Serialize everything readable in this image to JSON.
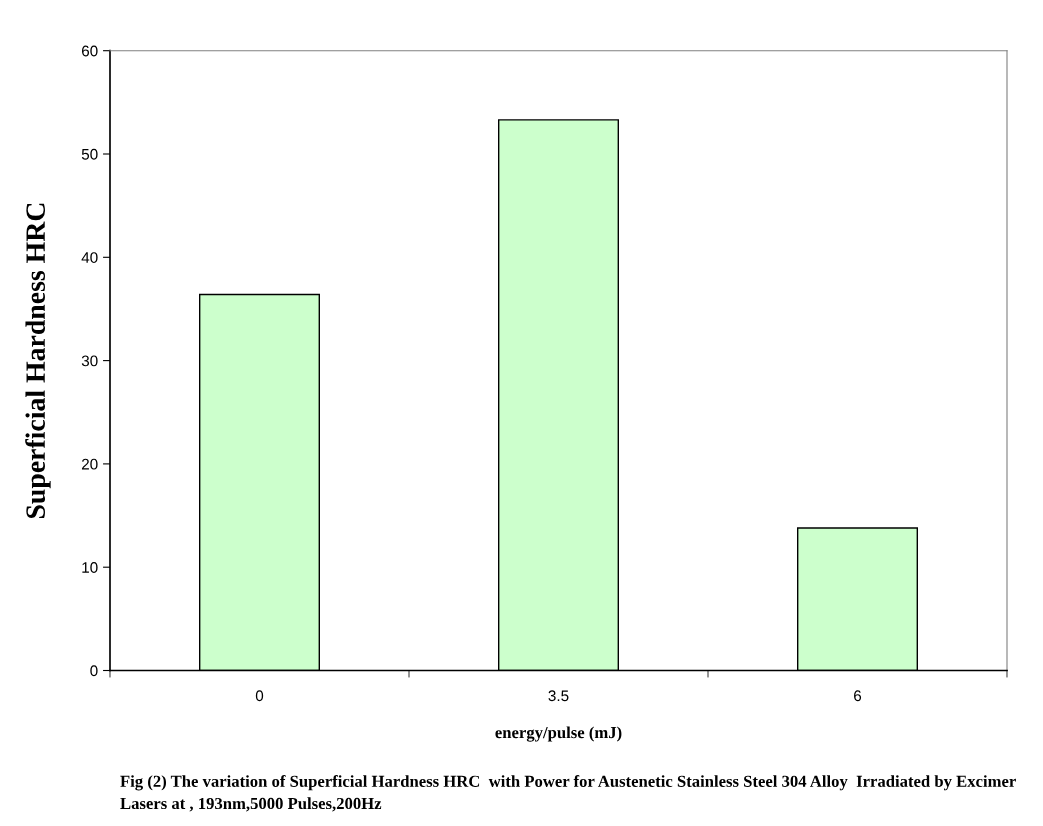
{
  "chart_data": {
    "type": "bar",
    "categories": [
      "0",
      "3.5",
      "6"
    ],
    "values": [
      36.4,
      53.3,
      13.8
    ],
    "color": "#ccffcc",
    "xlabel": "energy/pulse (mJ)",
    "ylabel": "Superficial Hardness HRC",
    "ylim": [
      0,
      60
    ],
    "yticks": [
      0,
      10,
      20,
      30,
      40,
      50,
      60
    ],
    "grid": false,
    "annotations": [
      "Fig (2) The variation of Superficial Hardness HRC  with Power for Austenetic Stainless Steel 304 Alloy  Irradiated by Excimer Lasers at , 193nm,5000 Pulses,200Hz"
    ]
  }
}
